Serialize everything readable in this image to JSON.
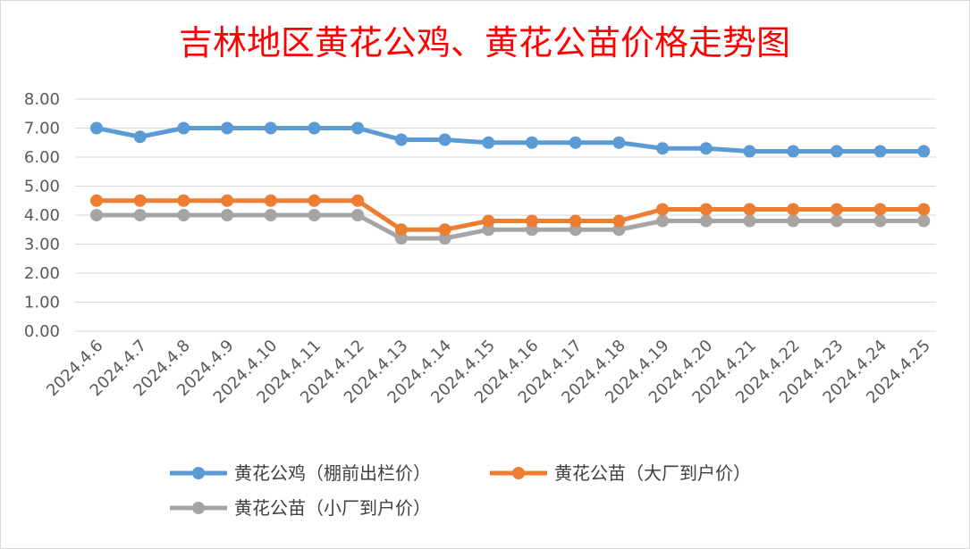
{
  "chart_data": {
    "type": "line",
    "title": "吉林地区黄花公鸡、黄花公苗价格走势图",
    "xlabel": "",
    "ylabel": "",
    "ylim": [
      0,
      8
    ],
    "yticks": [
      "0.00",
      "1.00",
      "2.00",
      "3.00",
      "4.00",
      "5.00",
      "6.00",
      "7.00",
      "8.00"
    ],
    "grid": true,
    "legend_position": "bottom",
    "categories": [
      "2024.4.6",
      "2024.4.7",
      "2024.4.8",
      "2024.4.9",
      "2024.4.10",
      "2024.4.11",
      "2024.4.12",
      "2024.4.13",
      "2024.4.14",
      "2024.4.15",
      "2024.4.16",
      "2024.4.17",
      "2024.4.18",
      "2024.4.19",
      "2024.4.20",
      "2024.4.21",
      "2024.4.22",
      "2024.4.23",
      "2024.4.24",
      "2024.4.25"
    ],
    "series": [
      {
        "name": "黄花公鸡（棚前出栏价）",
        "color": "#5b9bd5",
        "values": [
          7.0,
          6.7,
          7.0,
          7.0,
          7.0,
          7.0,
          7.0,
          6.6,
          6.6,
          6.5,
          6.5,
          6.5,
          6.5,
          6.3,
          6.3,
          6.2,
          6.2,
          6.2,
          6.2,
          6.2
        ]
      },
      {
        "name": "黄花公苗（大厂到户价）",
        "color": "#ed7d31",
        "values": [
          4.5,
          4.5,
          4.5,
          4.5,
          4.5,
          4.5,
          4.5,
          3.5,
          3.5,
          3.8,
          3.8,
          3.8,
          3.8,
          4.2,
          4.2,
          4.2,
          4.2,
          4.2,
          4.2,
          4.2
        ]
      },
      {
        "name": "黄花公苗（小厂到户价）",
        "color": "#a5a5a5",
        "values": [
          4.0,
          4.0,
          4.0,
          4.0,
          4.0,
          4.0,
          4.0,
          3.2,
          3.2,
          3.5,
          3.5,
          3.5,
          3.5,
          3.8,
          3.8,
          3.8,
          3.8,
          3.8,
          3.8,
          3.8
        ]
      }
    ]
  }
}
